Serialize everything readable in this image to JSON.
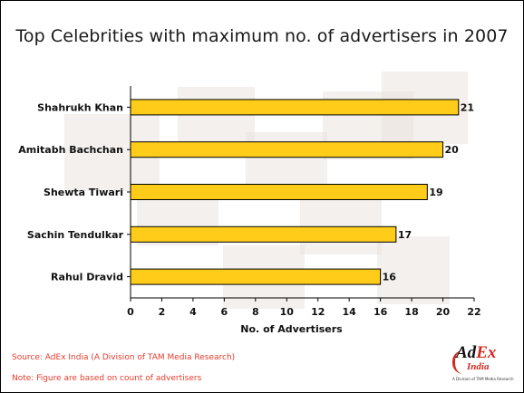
{
  "chart_data": {
    "type": "bar",
    "orientation": "horizontal",
    "title": "Top Celebrities with maximum no. of advertisers in 2007",
    "xlabel": "No. of Advertisers",
    "ylabel": "",
    "categories": [
      "Shahrukh Khan",
      "Amitabh Bachchan",
      "Shewta Tiwari",
      "Sachin Tendulkar",
      "Rahul Dravid"
    ],
    "values": [
      21,
      20,
      19,
      17,
      16
    ],
    "xlim": [
      0,
      22
    ],
    "xticks": [
      "0",
      "2",
      "4",
      "6",
      "8",
      "10",
      "12",
      "14",
      "16",
      "18",
      "20",
      "22"
    ],
    "grid": false,
    "legend": "none",
    "bar_color": "#ffcc1a",
    "bar_edge_color": "#000000"
  },
  "footer": {
    "source": "Source: AdEx India (A Division of TAM Media Research)",
    "note": "Note: Figure are based on count of advertisers"
  },
  "logo": {
    "main_prefix": "Ad",
    "main_accent": "Ex",
    "sub": "India",
    "tagline": "A Division of TAM Media Research"
  }
}
